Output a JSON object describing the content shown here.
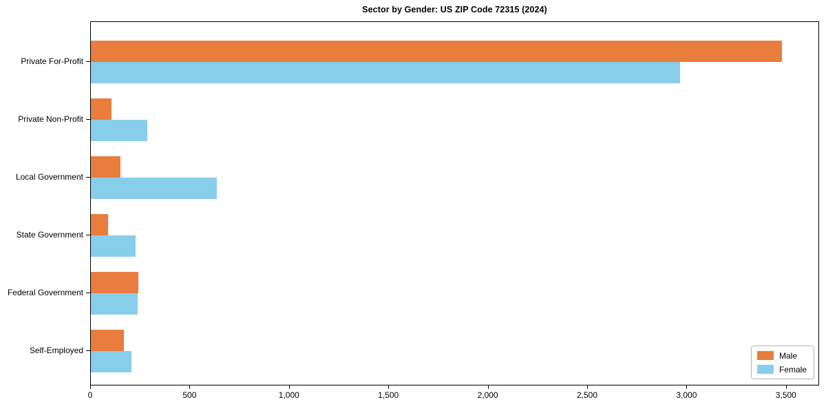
{
  "title": "Sector by Gender: US ZIP Code 72315 (2024)",
  "chart_data": {
    "type": "bar",
    "orientation": "horizontal",
    "title": "Sector by Gender: US ZIP Code 72315 (2024)",
    "xlabel": "",
    "ylabel": "",
    "grid": false,
    "legend_position": "lower right",
    "categories": [
      "Private For-Profit",
      "Private Non-Profit",
      "Local Government",
      "State Government",
      "Federal Government",
      "Self-Employed"
    ],
    "series": [
      {
        "name": "Male",
        "color": "#e87d3e",
        "values": [
          3475,
          105,
          150,
          85,
          240,
          165
        ]
      },
      {
        "name": "Female",
        "color": "#87ceeb",
        "values": [
          2965,
          285,
          635,
          225,
          235,
          205
        ]
      }
    ],
    "xlim": [
      0,
      3660
    ],
    "x_ticks": [
      {
        "value": 0,
        "label": "0"
      },
      {
        "value": 500,
        "label": "500"
      },
      {
        "value": 1000,
        "label": "1,000"
      },
      {
        "value": 1500,
        "label": "1,500"
      },
      {
        "value": 2000,
        "label": "2,000"
      },
      {
        "value": 2500,
        "label": "2,500"
      },
      {
        "value": 3000,
        "label": "3,000"
      },
      {
        "value": 3500,
        "label": "3,500"
      }
    ]
  },
  "legend": {
    "entries": [
      {
        "label": "Male"
      },
      {
        "label": "Female"
      }
    ]
  }
}
